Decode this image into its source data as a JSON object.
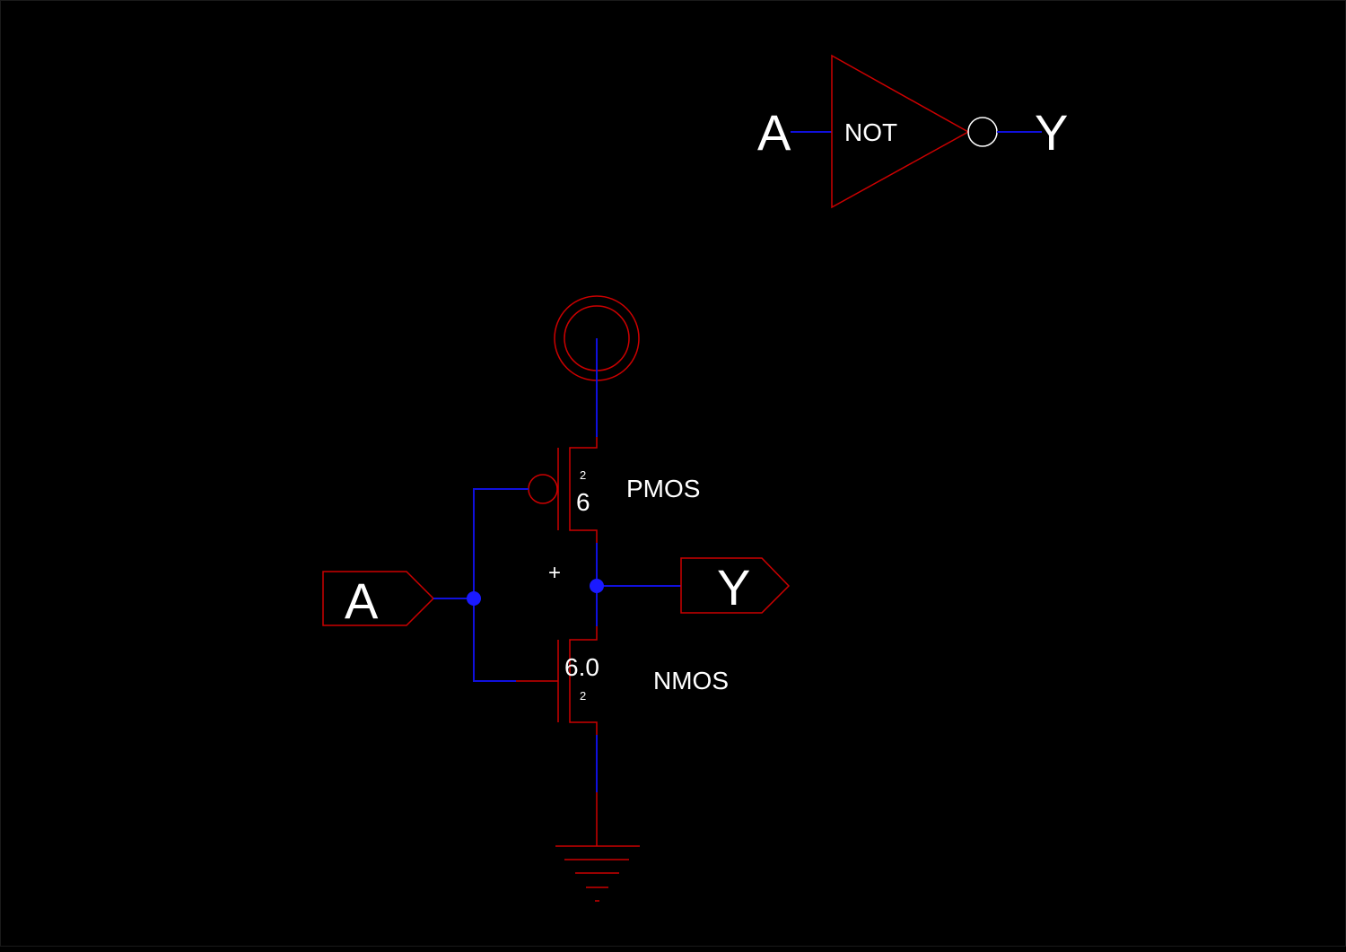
{
  "colors": {
    "background": "#000000",
    "device": "#cc0000",
    "wire": "#1010dd",
    "junction": "#1a1aff",
    "text": "#ffffff"
  },
  "symbol": {
    "input_label": "A",
    "output_label": "Y",
    "gate_name": "NOT"
  },
  "schematic": {
    "input_pin_label": "A",
    "output_pin_label": "Y",
    "pmos": {
      "name": "PMOS",
      "width": "6",
      "length": "2"
    },
    "nmos": {
      "name": "NMOS",
      "width": "6.0",
      "length": "2"
    },
    "origin_marker": "+",
    "supply_icon": "vdd-icon",
    "ground_icon": "ground-icon"
  }
}
